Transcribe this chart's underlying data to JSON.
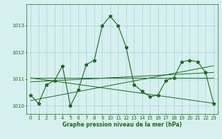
{
  "hours": [
    0,
    1,
    2,
    3,
    4,
    5,
    6,
    7,
    8,
    9,
    10,
    11,
    12,
    13,
    14,
    15,
    16,
    17,
    18,
    19,
    20,
    21,
    22,
    23
  ],
  "pressure": [
    1010.4,
    1010.1,
    1010.8,
    1010.95,
    1011.5,
    1010.0,
    1010.6,
    1011.55,
    1011.7,
    1013.0,
    1013.35,
    1013.0,
    1012.2,
    1010.8,
    1010.55,
    1010.35,
    1010.4,
    1010.95,
    1011.05,
    1011.65,
    1011.7,
    1011.65,
    1011.25,
    1010.1
  ],
  "trend_lines": [
    {
      "x": [
        0,
        23
      ],
      "y": [
        1011.05,
        1011.05
      ]
    },
    {
      "x": [
        0,
        23
      ],
      "y": [
        1010.9,
        1011.25
      ]
    },
    {
      "x": [
        0,
        23
      ],
      "y": [
        1011.05,
        1010.1
      ]
    },
    {
      "x": [
        0,
        23
      ],
      "y": [
        1010.2,
        1011.5
      ]
    }
  ],
  "line_color": "#1a6b1a",
  "bg_color": "#d6efef",
  "grid_color": "#a8d5d5",
  "xlabel": "Graphe pression niveau de la mer (hPa)",
  "ylim": [
    1009.7,
    1013.8
  ],
  "xlim": [
    -0.5,
    23.5
  ],
  "yticks": [
    1010,
    1011,
    1012,
    1013
  ],
  "xticks": [
    0,
    1,
    2,
    3,
    4,
    5,
    6,
    7,
    8,
    9,
    10,
    11,
    12,
    13,
    14,
    15,
    16,
    17,
    18,
    19,
    20,
    21,
    22,
    23
  ]
}
